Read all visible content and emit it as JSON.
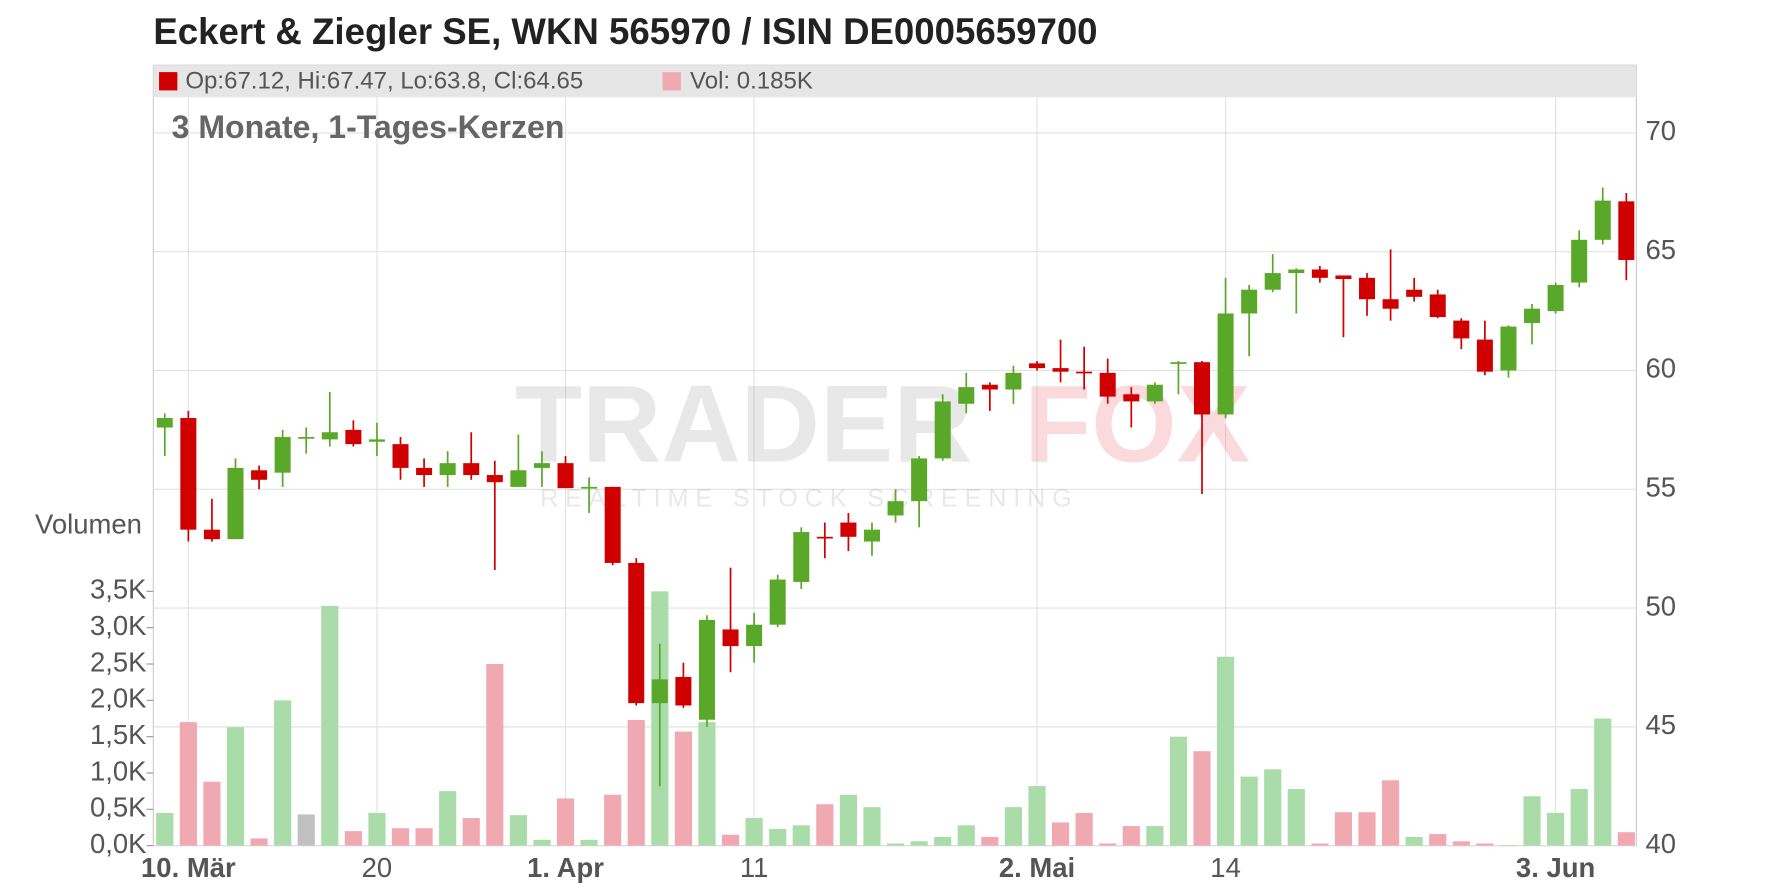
{
  "chart_data": {
    "type": "candlestick",
    "title": "Eckert & Ziegler SE, WKN 565970 / ISIN DE0005659700",
    "subtitle": "3 Monate, 1-Tages-Kerzen",
    "info": {
      "ohlc": "Op:67.12, Hi:67.47, Lo:63.8, Cl:64.65",
      "volume": "Vol: 0.185K"
    },
    "watermark": {
      "brand": "TRADER",
      "brand2": "FOX",
      "tagline": "REALTIME STOCK SCREENING"
    },
    "categories": [
      null,
      "10. Mär",
      null,
      null,
      null,
      null,
      null,
      null,
      null,
      "20",
      null,
      null,
      null,
      null,
      null,
      null,
      null,
      "1. Apr",
      null,
      null,
      null,
      null,
      null,
      null,
      null,
      "11",
      null,
      null,
      null,
      null,
      null,
      null,
      null,
      null,
      null,
      null,
      null,
      "2. Mai",
      null,
      null,
      null,
      null,
      null,
      null,
      null,
      "14",
      null,
      null,
      null,
      null,
      null,
      null,
      null,
      null,
      null,
      null,
      null,
      null,
      null,
      "3. Jun",
      null,
      null,
      null
    ],
    "open": [
      57.6,
      58.0,
      53.3,
      52.9,
      55.8,
      55.7,
      57.2,
      57.1,
      57.5,
      57.0,
      56.9,
      55.9,
      55.6,
      56.1,
      55.6,
      55.1,
      55.9,
      56.1,
      55.05,
      55.1,
      51.9,
      46.0,
      47.1,
      45.3,
      49.1,
      48.4,
      49.3,
      51.1,
      53.0,
      53.6,
      52.8,
      53.9,
      54.5,
      56.3,
      58.6,
      59.4,
      59.2,
      60.3,
      60.1,
      59.95,
      59.9,
      59.0,
      58.7,
      60.3,
      60.35,
      58.15,
      62.4,
      63.4,
      64.1,
      64.25,
      64.0,
      63.9,
      63.0,
      63.4,
      63.2,
      62.1,
      61.3,
      60.0,
      62.0,
      62.5,
      63.7,
      65.5,
      67.12
    ],
    "high": [
      58.2,
      58.3,
      54.6,
      56.3,
      56.0,
      57.5,
      57.6,
      59.1,
      57.9,
      57.8,
      57.2,
      56.3,
      56.6,
      57.4,
      56.2,
      57.3,
      56.6,
      56.4,
      55.5,
      55.1,
      52.1,
      48.5,
      47.7,
      49.7,
      51.7,
      49.8,
      51.4,
      53.4,
      53.6,
      54.0,
      53.6,
      55.0,
      56.4,
      59.0,
      59.9,
      59.5,
      60.2,
      60.4,
      61.3,
      61.0,
      60.5,
      59.3,
      59.5,
      60.4,
      60.4,
      63.9,
      63.6,
      64.9,
      64.3,
      64.4,
      64.0,
      64.1,
      65.1,
      63.9,
      63.4,
      62.2,
      62.1,
      61.9,
      62.8,
      63.7,
      65.9,
      67.7,
      67.47
    ],
    "low": [
      56.4,
      52.8,
      52.8,
      52.9,
      55.0,
      55.1,
      56.5,
      56.8,
      56.8,
      56.4,
      55.4,
      55.1,
      55.1,
      55.4,
      51.6,
      55.1,
      55.1,
      55.05,
      54.0,
      51.8,
      45.9,
      42.5,
      45.8,
      45.0,
      47.3,
      47.7,
      49.2,
      50.8,
      52.1,
      52.4,
      52.2,
      53.6,
      53.4,
      56.2,
      58.2,
      58.3,
      58.6,
      60.0,
      59.5,
      59.2,
      58.6,
      57.6,
      58.6,
      59.0,
      54.8,
      58.0,
      60.6,
      63.3,
      62.4,
      63.7,
      61.4,
      62.3,
      62.1,
      62.9,
      62.2,
      60.9,
      59.8,
      59.7,
      61.1,
      62.4,
      63.5,
      65.3,
      63.8
    ],
    "close": [
      58.0,
      53.3,
      52.9,
      55.9,
      55.4,
      57.2,
      57.2,
      57.4,
      56.9,
      57.1,
      55.9,
      55.6,
      56.1,
      55.6,
      55.3,
      55.8,
      56.1,
      55.05,
      55.1,
      51.9,
      46.0,
      47.0,
      45.9,
      49.5,
      48.4,
      49.3,
      51.2,
      53.2,
      52.95,
      53.0,
      53.3,
      54.5,
      56.3,
      58.7,
      59.3,
      59.2,
      59.9,
      60.1,
      59.95,
      59.9,
      58.9,
      58.7,
      59.4,
      60.35,
      58.15,
      62.4,
      63.4,
      64.1,
      64.25,
      63.9,
      63.85,
      63.0,
      62.6,
      63.1,
      62.25,
      61.35,
      59.95,
      61.85,
      62.6,
      63.6,
      65.5,
      67.15,
      64.65
    ],
    "ylim": [
      40,
      71.5
    ],
    "yticks": [
      40,
      45,
      50,
      55,
      60,
      65,
      70
    ],
    "volume": {
      "name": "Volumen",
      "axis": "y2",
      "values": [
        0.45,
        1.7,
        0.88,
        1.63,
        0.1,
        2.0,
        0.43,
        3.3,
        0.2,
        0.45,
        0.24,
        0.24,
        0.75,
        0.38,
        2.5,
        0.42,
        0.08,
        0.65,
        0.08,
        0.7,
        1.73,
        3.5,
        1.57,
        1.7,
        0.15,
        0.38,
        0.23,
        0.28,
        0.57,
        0.7,
        0.53,
        0.03,
        0.06,
        0.12,
        0.28,
        0.12,
        0.53,
        0.82,
        0.32,
        0.45,
        0.03,
        0.27,
        0.27,
        1.5,
        1.3,
        2.6,
        0.95,
        1.05,
        0.78,
        0.03,
        0.46,
        0.46,
        0.9,
        0.12,
        0.16,
        0.06,
        0.03,
        0.01,
        0.68,
        0.45,
        0.78,
        1.75,
        0.185
      ]
    },
    "y2lim": [
      0,
      10.3
    ],
    "y2ticks": [
      {
        "value": 0,
        "label": "0,0K"
      },
      {
        "value": 0.5,
        "label": "0,5K"
      },
      {
        "value": 1,
        "label": "1,0K"
      },
      {
        "value": 1.5,
        "label": "1,5K"
      },
      {
        "value": 2,
        "label": "2,0K"
      },
      {
        "value": 2.5,
        "label": "2,5K"
      },
      {
        "value": 3,
        "label": "3,0K"
      },
      {
        "value": 3.5,
        "label": "3,5K"
      }
    ],
    "colors": {
      "up": "#5aa829",
      "down": "#d10000",
      "volume_up": "#a9dca8",
      "volume_down": "#f1a9b1",
      "volume_flat": "#c0c0c0"
    },
    "grid": true
  }
}
